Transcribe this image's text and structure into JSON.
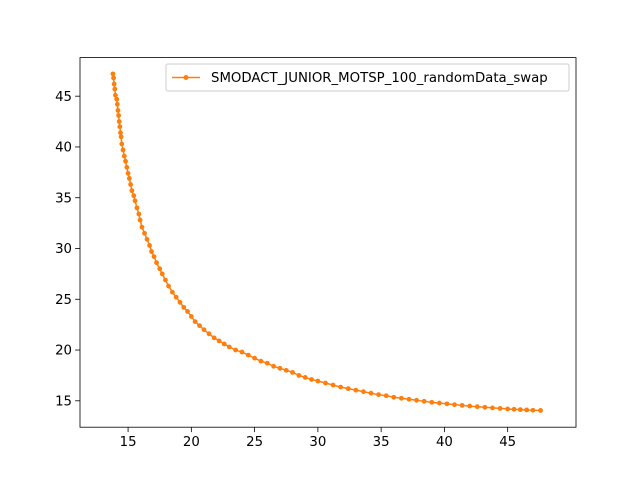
{
  "chart_data": {
    "type": "line",
    "title": "",
    "xlabel": "",
    "ylabel": "",
    "xlim": [
      11.2,
      50.4
    ],
    "ylim": [
      12.4,
      48.8
    ],
    "xticks": [
      15,
      20,
      25,
      30,
      35,
      40,
      45
    ],
    "yticks": [
      15,
      20,
      25,
      30,
      35,
      40,
      45
    ],
    "grid": false,
    "legend_position": "upper right",
    "series": [
      {
        "name": "SMODACT_JUNIOR_MOTSP_100_randomData_swap",
        "color": "#ff7f0e",
        "marker": "circle",
        "points": [
          [
            13.8,
            47.2
          ],
          [
            13.85,
            46.8
          ],
          [
            13.9,
            46.2
          ],
          [
            13.95,
            45.7
          ],
          [
            14.0,
            45.1
          ],
          [
            14.1,
            44.7
          ],
          [
            14.15,
            44.2
          ],
          [
            14.2,
            43.6
          ],
          [
            14.25,
            43.1
          ],
          [
            14.3,
            42.5
          ],
          [
            14.35,
            42.0
          ],
          [
            14.4,
            41.4
          ],
          [
            14.45,
            41.0
          ],
          [
            14.5,
            40.3
          ],
          [
            14.6,
            39.7
          ],
          [
            14.7,
            39.1
          ],
          [
            14.8,
            38.6
          ],
          [
            14.9,
            38.0
          ],
          [
            15.0,
            37.4
          ],
          [
            15.1,
            36.9
          ],
          [
            15.2,
            36.3
          ],
          [
            15.3,
            35.7
          ],
          [
            15.45,
            35.2
          ],
          [
            15.55,
            34.7
          ],
          [
            15.7,
            34.0
          ],
          [
            15.85,
            33.4
          ],
          [
            15.95,
            32.8
          ],
          [
            16.1,
            32.1
          ],
          [
            16.3,
            31.5
          ],
          [
            16.5,
            30.9
          ],
          [
            16.7,
            30.3
          ],
          [
            16.85,
            29.7
          ],
          [
            17.05,
            29.2
          ],
          [
            17.25,
            28.6
          ],
          [
            17.5,
            28.0
          ],
          [
            17.7,
            27.5
          ],
          [
            17.95,
            26.9
          ],
          [
            18.2,
            26.3
          ],
          [
            18.5,
            25.7
          ],
          [
            18.8,
            25.2
          ],
          [
            19.1,
            24.7
          ],
          [
            19.4,
            24.2
          ],
          [
            19.7,
            23.8
          ],
          [
            20.0,
            23.3
          ],
          [
            20.3,
            22.8
          ],
          [
            20.65,
            22.4
          ],
          [
            21.0,
            22.0
          ],
          [
            21.4,
            21.6
          ],
          [
            21.8,
            21.2
          ],
          [
            22.2,
            20.9
          ],
          [
            22.6,
            20.6
          ],
          [
            23.0,
            20.3
          ],
          [
            23.5,
            20.0
          ],
          [
            24.0,
            19.8
          ],
          [
            24.5,
            19.5
          ],
          [
            25.0,
            19.2
          ],
          [
            25.5,
            18.9
          ],
          [
            26.0,
            18.7
          ],
          [
            26.5,
            18.4
          ],
          [
            27.0,
            18.2
          ],
          [
            27.5,
            18.0
          ],
          [
            28.0,
            17.8
          ],
          [
            28.5,
            17.5
          ],
          [
            29.0,
            17.3
          ],
          [
            29.5,
            17.1
          ],
          [
            30.0,
            16.95
          ],
          [
            30.6,
            16.75
          ],
          [
            31.2,
            16.55
          ],
          [
            31.8,
            16.35
          ],
          [
            32.4,
            16.2
          ],
          [
            33.0,
            16.05
          ],
          [
            33.6,
            15.9
          ],
          [
            34.2,
            15.75
          ],
          [
            34.8,
            15.6
          ],
          [
            35.4,
            15.5
          ],
          [
            36.0,
            15.35
          ],
          [
            36.6,
            15.25
          ],
          [
            37.2,
            15.15
          ],
          [
            37.8,
            15.05
          ],
          [
            38.4,
            14.95
          ],
          [
            39.0,
            14.85
          ],
          [
            39.6,
            14.78
          ],
          [
            40.2,
            14.7
          ],
          [
            40.8,
            14.62
          ],
          [
            41.4,
            14.55
          ],
          [
            42.0,
            14.48
          ],
          [
            42.6,
            14.42
          ],
          [
            43.2,
            14.36
          ],
          [
            43.8,
            14.3
          ],
          [
            44.4,
            14.25
          ],
          [
            45.0,
            14.2
          ],
          [
            45.5,
            14.16
          ],
          [
            46.0,
            14.13
          ],
          [
            46.5,
            14.1
          ],
          [
            47.0,
            14.07
          ],
          [
            47.6,
            14.05
          ]
        ]
      }
    ]
  }
}
